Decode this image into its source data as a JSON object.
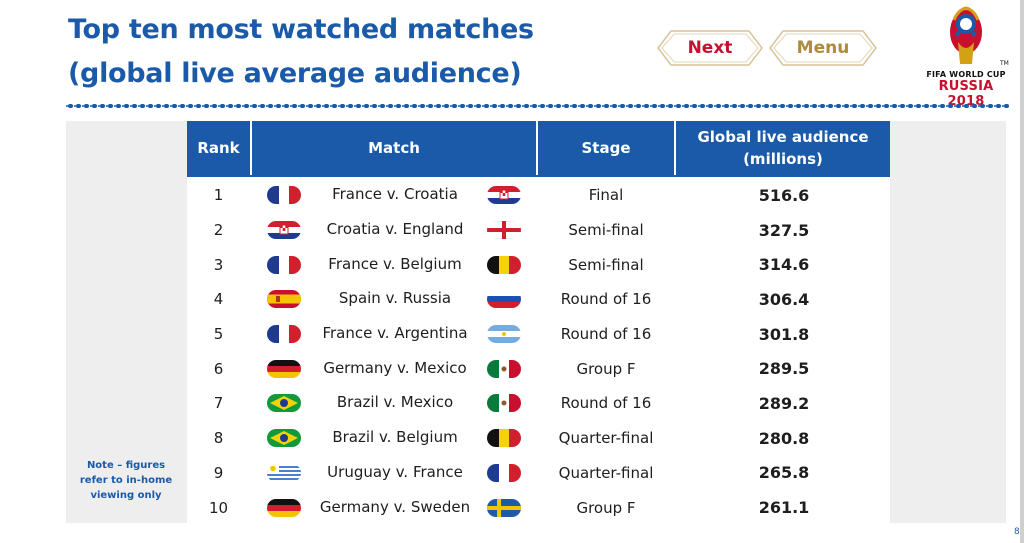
{
  "title": {
    "line1": "Top ten most watched matches",
    "line2": "(global live average audience)"
  },
  "nav": {
    "next_label": "Next",
    "menu_label": "Menu"
  },
  "logo": {
    "line1": "FIFA WORLD CUP",
    "line2": "RUSSIA 2018",
    "tm": "TM"
  },
  "table": {
    "headers": {
      "rank": "Rank",
      "match": "Match",
      "stage": "Stage",
      "audience_line1": "Global live audience",
      "audience_line2": "(millions)"
    },
    "rows": [
      {
        "rank": "1",
        "match": "France v. Croatia",
        "stage": "Final",
        "audience": "516.6",
        "flag_left": "france",
        "flag_right": "croatia"
      },
      {
        "rank": "2",
        "match": "Croatia v. England",
        "stage": "Semi-final",
        "audience": "327.5",
        "flag_left": "croatia",
        "flag_right": "england"
      },
      {
        "rank": "3",
        "match": "France v. Belgium",
        "stage": "Semi-final",
        "audience": "314.6",
        "flag_left": "france",
        "flag_right": "belgium"
      },
      {
        "rank": "4",
        "match": "Spain v. Russia",
        "stage": "Round of 16",
        "audience": "306.4",
        "flag_left": "spain",
        "flag_right": "russia"
      },
      {
        "rank": "5",
        "match": "France v. Argentina",
        "stage": "Round of 16",
        "audience": "301.8",
        "flag_left": "france",
        "flag_right": "argentina"
      },
      {
        "rank": "6",
        "match": "Germany v. Mexico",
        "stage": "Group F",
        "audience": "289.5",
        "flag_left": "germany",
        "flag_right": "mexico"
      },
      {
        "rank": "7",
        "match": "Brazil v. Mexico",
        "stage": "Round of 16",
        "audience": "289.2",
        "flag_left": "brazil",
        "flag_right": "mexico"
      },
      {
        "rank": "8",
        "match": "Brazil v. Belgium",
        "stage": "Quarter-final",
        "audience": "280.8",
        "flag_left": "brazil",
        "flag_right": "belgium"
      },
      {
        "rank": "9",
        "match": "Uruguay v. France",
        "stage": "Quarter-final",
        "audience": "265.8",
        "flag_left": "uruguay",
        "flag_right": "france"
      },
      {
        "rank": "10",
        "match": "Germany v. Sweden",
        "stage": "Group F",
        "audience": "261.1",
        "flag_left": "germany",
        "flag_right": "sweden"
      }
    ]
  },
  "note": {
    "line1": "Note – figures",
    "line2": "refer to in-home",
    "line3": "viewing only"
  },
  "page_number": "8",
  "colors": {
    "primary_blue": "#1a5aa8",
    "next_red": "#c8102e",
    "menu_gold": "#b08a3c"
  }
}
